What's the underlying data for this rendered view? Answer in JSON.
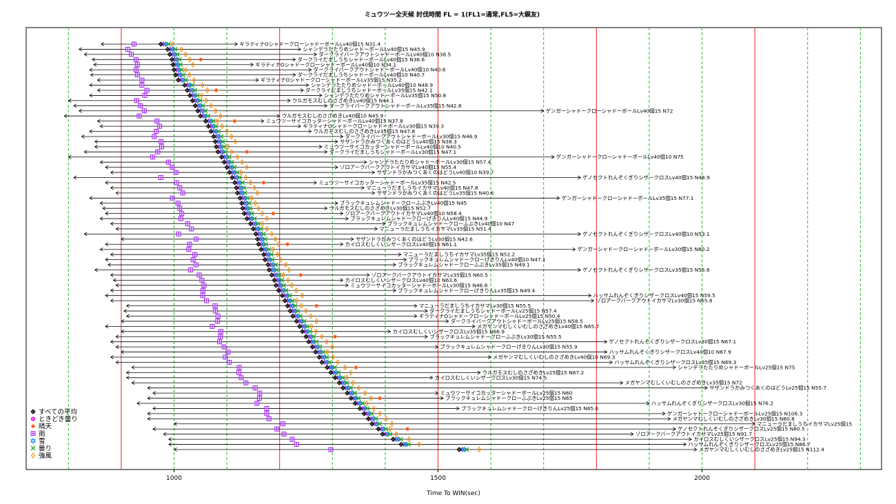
{
  "chart_data": {
    "type": "scatter",
    "title": "ミュウツー全天候 討伐時間 FL = 1(FL1=通常,FL5=大親友)",
    "xlabel": "Time To WIN(sec)",
    "ylabel": "",
    "xlim": [
      720,
      2340
    ],
    "x_ticks": [
      1000,
      1500,
      2000
    ],
    "red_vlines": [
      900,
      1200,
      1500,
      1800,
      2100
    ],
    "green_vlines": [
      800,
      1000,
      1100,
      1300,
      1400,
      1600,
      1700,
      1900,
      2000,
      2200,
      2300
    ],
    "grid": "vertical lines only",
    "legend_position": "bottom-left",
    "legend": [
      {
        "name": "すべての平均",
        "marker": "diamond-plus",
        "color": "#000000"
      },
      {
        "name": "ときどき曇り",
        "marker": "star",
        "color": "#e000e0"
      },
      {
        "name": "晴天",
        "marker": "asterisk",
        "color": "#ff4500"
      },
      {
        "name": "雨",
        "marker": "square-cross",
        "color": "#a020f0"
      },
      {
        "name": "雪",
        "marker": "hexagram",
        "color": "#1e90ff"
      },
      {
        "name": "曇り",
        "marker": "cross",
        "color": "#22aa22"
      },
      {
        "name": "強風",
        "marker": "diamond",
        "color": "#ff8c00"
      }
    ],
    "rows": [
      {
        "label": "ギラティナOシャドークローシャドーボールLv40個15 N31.4",
        "avg": 975,
        "left": 862,
        "right": 1120
      },
      {
        "label": "シャンデラたたりめシャドーボールLv40個15 N45.9",
        "avg": 988,
        "left": 820,
        "right": 1240
      },
      {
        "label": "ダークライバークアウトシャドーボールLv40個10 N38.5",
        "avg": 992,
        "left": 830,
        "right": 1270
      },
      {
        "label": "ダークライだましうちシャドーボールLv40個15 N38.6",
        "avg": 996,
        "left": 845,
        "right": 1230
      },
      {
        "label": "ギラティナOシャドークローシャドーボールLv40個10 N34.1",
        "avg": 998,
        "left": 848,
        "right": 1150
      },
      {
        "label": "ダークライバークアウトシャドーボールLv40個10 N40.6",
        "avg": 1000,
        "left": 840,
        "right": 1260
      },
      {
        "label": "ダークライだましうちシャドーボールLv40個10 N40.7",
        "avg": 1003,
        "left": 842,
        "right": 1230
      },
      {
        "label": "ギラティナOシャドークローシャドーボールLv35個15 N35.2",
        "avg": 1008,
        "left": 855,
        "right": 1160
      },
      {
        "label": "シャンデラたたりめシャドーボールLv40個10 N48.9",
        "avg": 1020,
        "left": 840,
        "right": 1255
      },
      {
        "label": "ダークライだましうちシャドーボールLv35個15 N42.1",
        "avg": 1025,
        "left": 855,
        "right": 1245
      },
      {
        "label": "シャンデラたたりめシャドーボールLv35個15 N50.8",
        "avg": 1030,
        "left": 840,
        "right": 1280
      },
      {
        "label": "ウルガモスむしのさざめきLv40個15 N44.1",
        "avg": 1035,
        "left": 800,
        "right": 1220
      },
      {
        "label": "ダークライバークアウトシャドーボールLv35個15 N42.8",
        "avg": 1040,
        "left": 810,
        "right": 1290
      },
      {
        "label": "ゲンガーシャドークローシャドーボールLv40個15 N72",
        "avg": 1045,
        "left": 820,
        "right": 1700
      },
      {
        "label": "ウルガモスむしのさざめきLv40個10 N45.9",
        "avg": 1050,
        "left": 792,
        "right": 1200
      },
      {
        "label": "ミュウツーサイコカッターシャドーボールLv40個15 N37.8",
        "avg": 1060,
        "left": 855,
        "right": 1170
      },
      {
        "label": "ギラティナOシャドークローシャドーボールLv30個15 N39.3",
        "avg": 1065,
        "left": 860,
        "right": 1240
      },
      {
        "label": "ウルガモスむしのさざめきLv35個15 N47.8",
        "avg": 1070,
        "left": 840,
        "right": 1260
      },
      {
        "label": "ダークライバークアウトシャドーボールLv30個15 N46.9",
        "avg": 1075,
        "left": 825,
        "right": 1320
      },
      {
        "label": "サザンドラかみつくあくのはどうLv40個15 N38.3",
        "avg": 1078,
        "left": 850,
        "right": 1310
      },
      {
        "label": "ミュウツーサイコカッターシャドーボールLv40個10 N40.5",
        "avg": 1080,
        "left": 850,
        "right": 1280
      },
      {
        "label": "ダークライだましうちシャドーボールLv30個15 N47.1",
        "avg": 1083,
        "left": 830,
        "right": 1290
      },
      {
        "label": "ゲンガーシャドークローシャドーボールLv40個10 N75",
        "avg": 1090,
        "left": 800,
        "right": 1720
      },
      {
        "label": "シャンデラたたりめシャドーボールLv30個15 N57.4",
        "avg": 1095,
        "left": 860,
        "right": 1365
      },
      {
        "label": "ゾロアークバークアウトイカサマLv40個15 N55.4",
        "avg": 1100,
        "left": 870,
        "right": 1310
      },
      {
        "label": "サザンドラかみつくあくのはどうLv40個10 N39.7",
        "avg": 1105,
        "left": 880,
        "right": 1380
      },
      {
        "label": "ゲノセクトれんぞくぎりシザークロスLv40個15 N48.9",
        "avg": 1110,
        "left": 810,
        "right": 1770
      },
      {
        "label": "ミュウツーサイコカッターシャドーボールLv35個15 N42.5",
        "avg": 1115,
        "left": 870,
        "right": 1270
      },
      {
        "label": "マニューラだましうちイカサマLv40個15 N47.8",
        "avg": 1118,
        "left": 880,
        "right": 1360
      },
      {
        "label": "サザンドラかみつくあくのはどうLv35個15 N40.6",
        "avg": 1120,
        "left": 890,
        "right": 1380
      },
      {
        "label": "ゲンガーシャドークローシャドーボールLv35個15 N77.1",
        "avg": 1125,
        "left": 840,
        "right": 1730
      },
      {
        "label": "ブラックキュレムシャドークローふぶきLv40個15 N45",
        "avg": 1128,
        "left": 860,
        "right": 1310
      },
      {
        "label": "ウルガモスむしのさざめきLv30個15 N52.7",
        "avg": 1130,
        "left": 865,
        "right": 1290
      },
      {
        "label": "ゾロアークバークアウトイカサマLv40個10 N58.4",
        "avg": 1133,
        "left": 870,
        "right": 1320
      },
      {
        "label": "ブラックキュレムシャドークローげきりんLv40個15 N44.9",
        "avg": 1138,
        "left": 860,
        "right": 1330
      },
      {
        "label": "ブラックキュレムシャドークローふぶきLv40個10 N47",
        "avg": 1145,
        "left": 880,
        "right": 1400
      },
      {
        "label": "マニューラだましうちイカサマLv35個15 N51.4",
        "avg": 1150,
        "left": 890,
        "right": 1385
      },
      {
        "label": "ゲノセクトれんぞくぎりシザークロスLv40個10 N53.1",
        "avg": 1155,
        "left": 830,
        "right": 1770
      },
      {
        "label": "サザンドラかみつくあくのはどうLv30個15 N42.6",
        "avg": 1158,
        "left": 900,
        "right": 1340
      },
      {
        "label": "カイロスむしくいシザークロスLv40個15 N61.1",
        "avg": 1160,
        "left": 870,
        "right": 1320
      },
      {
        "label": "ゲンガーシャドークローシャドーボールLv30個15 N80.2",
        "avg": 1165,
        "left": 860,
        "right": 1760
      },
      {
        "label": "マニューラだましうちイカサマLv35個15 N52.2",
        "avg": 1170,
        "left": 880,
        "right": 1430
      },
      {
        "label": "ブラックキュレムシャドークローげきりんLv40個10 N47.1",
        "avg": 1172,
        "left": 870,
        "right": 1440
      },
      {
        "label": "ブラックキュレムシャドークローふぶきLv35個15 N49.1",
        "avg": 1178,
        "left": 875,
        "right": 1420
      },
      {
        "label": "ゲノセクトれんぞくぎりシザークロスLv35個15 N55.6",
        "avg": 1180,
        "left": 850,
        "right": 1770
      },
      {
        "label": "ゾロアークバークアウトイカサマLv35個15 N60.5",
        "avg": 1185,
        "left": 880,
        "right": 1370
      },
      {
        "label": "カイロスむしくいシザークロスLv40個10 N63.6",
        "avg": 1190,
        "left": 885,
        "right": 1320
      },
      {
        "label": "ミュウツーサイコカッターシャドーボールLv30個15 N46.8",
        "avg": 1193,
        "left": 890,
        "right": 1330
      },
      {
        "label": "ブラックキュレムシャドークローげきりんLv35個15 N49.4",
        "avg": 1198,
        "left": 880,
        "right": 1420
      },
      {
        "label": "ハッサムれんぞくぎりシザークロスLv40個15 N59.5",
        "avg": 1205,
        "left": 870,
        "right": 1790
      },
      {
        "label": "ゾロアークバークアウトイカサマLv30個15 N65.8",
        "avg": 1210,
        "left": 880,
        "right": 1795
      },
      {
        "label": "マニューラだましうちイカサマLv30個15 N55.5",
        "avg": 1215,
        "left": 910,
        "right": 1460
      },
      {
        "label": "ダークライだましうちシャドーボールLv25個15 N57.4",
        "avg": 1220,
        "left": 905,
        "right": 1480
      },
      {
        "label": "ギラティナOシャドークローシャドーボールLv25個15 N50.4",
        "avg": 1225,
        "left": 910,
        "right": 1460
      },
      {
        "label": "ダークライバークアウトシャドーボールLv25個15 N58.5",
        "avg": 1232,
        "left": 900,
        "right": 1520
      },
      {
        "label": "メガヤンマむしくいむしのさざめきLv40個15 N65.7",
        "avg": 1238,
        "left": 870,
        "right": 1570
      },
      {
        "label": "カイロスむしくいシザークロスLv35個15 N66.9",
        "avg": 1243,
        "left": 900,
        "right": 1410
      },
      {
        "label": "ブラックキュレムシャドークローふぶきLv30個15 N55.5",
        "avg": 1250,
        "left": 890,
        "right": 1480
      },
      {
        "label": "ゲノセクトれんぞくぎりシザークロスLv30個15 N67.1",
        "avg": 1255,
        "left": 880,
        "right": 1820
      },
      {
        "label": "ブラックキュレムシャドークローげきりんLv30個15 N55.9",
        "avg": 1262,
        "left": 890,
        "right": 1500
      },
      {
        "label": "ハッサムれんぞくぎりシザークロスLv40個10 N67.9",
        "avg": 1268,
        "left": 900,
        "right": 1820
      },
      {
        "label": "メガヤンマむしくいむしのさざめきLv40個10 N69.3",
        "avg": 1275,
        "left": 880,
        "right": 1600
      },
      {
        "label": "ハッサムれんぞくぎりシザークロスLv35個15 N69.3",
        "avg": 1280,
        "left": 890,
        "right": 1830
      },
      {
        "label": "シャンデラたたりめシャドーボールLv25個15 N75",
        "avg": 1290,
        "left": 920,
        "right": 1950
      },
      {
        "label": "ウルガモスむしのさざめきLv25個15 N67.2",
        "avg": 1297,
        "left": 910,
        "right": 1580
      },
      {
        "label": "カイロスむしくいシザークロスLv30個15 N74.5",
        "avg": 1305,
        "left": 910,
        "right": 1490
      },
      {
        "label": "メガヤンマむしくいむしのさざめきLv35個15 N72",
        "avg": 1313,
        "left": 920,
        "right": 1850
      },
      {
        "label": "サザンドラかみつくあくのはどうLv25個15 N55.7",
        "avg": 1320,
        "left": 950,
        "right": 2010
      },
      {
        "label": "ミュウツーサイコカッターシャドーボールLv25個15 N60",
        "avg": 1328,
        "left": 960,
        "right": 1500
      },
      {
        "label": "ブラックキュレムシャドークローふぶきLv25個15 N65",
        "avg": 1335,
        "left": 950,
        "right": 1510
      },
      {
        "label": "ハッサムれんぞくぎりシザークロスLv30個15 N76.2",
        "avg": 1343,
        "left": 930,
        "right": 1900
      },
      {
        "label": "ブラックキュレムシャドークローげきりんLv25個15 N65.6",
        "avg": 1352,
        "left": 960,
        "right": 1540
      },
      {
        "label": "ゲンガーシャドークローシャドーボールLv25個15 N106.3",
        "avg": 1360,
        "left": 950,
        "right": 1930
      },
      {
        "label": "メガヤンマむしくいむしのさざめきLv30個15 N80.8",
        "avg": 1368,
        "left": 950,
        "right": 1940
      },
      {
        "label": "マニューラだましうちイカサマLv25個15",
        "avg": 1375,
        "left": 1000,
        "right": 2100
      },
      {
        "label": "ゲノセクトれんぞくぎりシザークロスLv25個15 N80.5",
        "avg": 1387,
        "left": 960,
        "right": 1950
      },
      {
        "label": "ゾロアークバークアウトイカサマLv25個15 N91.7",
        "avg": 1395,
        "left": 980,
        "right": 1870
      },
      {
        "label": "カイロスむしくいシザークロスLv25個15 N94.3",
        "avg": 1415,
        "left": 990,
        "right": 1980
      },
      {
        "label": "ハッサムれんぞくぎりシザークロスLv25個15 N86.7",
        "avg": 1430,
        "left": 990,
        "right": 1970
      },
      {
        "label": "メガヤンマむしくいむしのさざめきLv25個15 N112.4",
        "avg": 1540,
        "left": 1000,
        "right": 1990
      }
    ]
  }
}
